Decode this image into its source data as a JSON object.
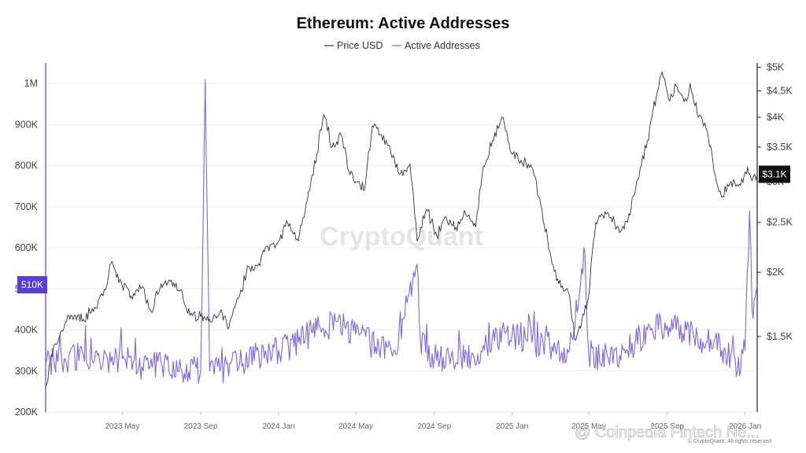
{
  "chart_data": {
    "type": "line",
    "title": "Ethereum: Active Addresses",
    "legend": {
      "placement": "top-center",
      "entries": [
        {
          "label": "Price USD",
          "color": "#333333"
        },
        {
          "label": "Active Addresses",
          "color": "#7b61ff"
        }
      ]
    },
    "x_axis": {
      "type": "date",
      "range": [
        "2023-01-01",
        "2026-01-20"
      ],
      "ticks": [
        {
          "date": "2023-05-01",
          "label": "2023 May"
        },
        {
          "date": "2023-09-01",
          "label": "2023 Sep"
        },
        {
          "date": "2024-01-01",
          "label": "2024 Jan"
        },
        {
          "date": "2024-05-01",
          "label": "2024 May"
        },
        {
          "date": "2024-09-01",
          "label": "2024 Sep"
        },
        {
          "date": "2025-01-01",
          "label": "2025 Jan"
        },
        {
          "date": "2025-05-01",
          "label": "2025 May"
        },
        {
          "date": "2025-09-01",
          "label": "2025 Sep"
        },
        {
          "date": "2026-01-01",
          "label": "2026 Jan"
        }
      ]
    },
    "y_left": {
      "title": "",
      "range": [
        200000,
        1050000
      ],
      "ticks": [
        {
          "value": 200000,
          "label": "200K"
        },
        {
          "value": 300000,
          "label": "300K"
        },
        {
          "value": 400000,
          "label": "400K"
        },
        {
          "value": 500000,
          "label": "500K"
        },
        {
          "value": 600000,
          "label": "600K"
        },
        {
          "value": 700000,
          "label": "700K"
        },
        {
          "value": 800000,
          "label": "800K"
        },
        {
          "value": 900000,
          "label": "900K"
        },
        {
          "value": 1000000,
          "label": "1M"
        }
      ]
    },
    "y_right": {
      "title": "",
      "scale": "log",
      "range": [
        1070,
        5100
      ],
      "ticks": [
        {
          "value": 1500,
          "label": "$1.5K"
        },
        {
          "value": 2000,
          "label": "$2K"
        },
        {
          "value": 2500,
          "label": "$2.5K"
        },
        {
          "value": 3000,
          "label": "$3K"
        },
        {
          "value": 3500,
          "label": "$3.5K"
        },
        {
          "value": 4000,
          "label": "$4K"
        },
        {
          "value": 4500,
          "label": "$4.5K"
        },
        {
          "value": 5000,
          "label": "$5K"
        }
      ]
    },
    "grid": true,
    "current_labels": {
      "active_addresses": "510K",
      "price": "$3.1K"
    },
    "series": [
      {
        "name": "Price USD",
        "axis": "right",
        "color": "#333333",
        "points": [
          [
            "2023-01-01",
            1200
          ],
          [
            "2023-01-15",
            1450
          ],
          [
            "2023-02-01",
            1600
          ],
          [
            "2023-02-15",
            1650
          ],
          [
            "2023-03-01",
            1620
          ],
          [
            "2023-03-15",
            1700
          ],
          [
            "2023-04-01",
            1800
          ],
          [
            "2023-04-15",
            2100
          ],
          [
            "2023-05-01",
            1880
          ],
          [
            "2023-05-15",
            1800
          ],
          [
            "2023-06-01",
            1870
          ],
          [
            "2023-06-15",
            1680
          ],
          [
            "2023-07-01",
            1900
          ],
          [
            "2023-07-15",
            1920
          ],
          [
            "2023-08-01",
            1850
          ],
          [
            "2023-08-15",
            1650
          ],
          [
            "2023-09-01",
            1640
          ],
          [
            "2023-09-15",
            1620
          ],
          [
            "2023-10-01",
            1670
          ],
          [
            "2023-10-15",
            1560
          ],
          [
            "2023-11-01",
            1800
          ],
          [
            "2023-11-15",
            2050
          ],
          [
            "2023-12-01",
            2080
          ],
          [
            "2023-12-15",
            2250
          ],
          [
            "2024-01-01",
            2300
          ],
          [
            "2024-01-15",
            2500
          ],
          [
            "2024-02-01",
            2300
          ],
          [
            "2024-02-15",
            2750
          ],
          [
            "2024-03-01",
            3400
          ],
          [
            "2024-03-12",
            4050
          ],
          [
            "2024-03-25",
            3500
          ],
          [
            "2024-04-08",
            3700
          ],
          [
            "2024-04-20",
            3150
          ],
          [
            "2024-05-01",
            3000
          ],
          [
            "2024-05-15",
            2900
          ],
          [
            "2024-05-27",
            3850
          ],
          [
            "2024-06-10",
            3700
          ],
          [
            "2024-06-25",
            3400
          ],
          [
            "2024-07-10",
            3100
          ],
          [
            "2024-07-25",
            3250
          ],
          [
            "2024-08-05",
            2300
          ],
          [
            "2024-08-20",
            2650
          ],
          [
            "2024-09-05",
            2350
          ],
          [
            "2024-09-20",
            2550
          ],
          [
            "2024-10-05",
            2450
          ],
          [
            "2024-10-20",
            2600
          ],
          [
            "2024-11-05",
            2450
          ],
          [
            "2024-11-15",
            3100
          ],
          [
            "2024-12-01",
            3600
          ],
          [
            "2024-12-16",
            4000
          ],
          [
            "2024-12-31",
            3400
          ],
          [
            "2025-01-15",
            3300
          ],
          [
            "2025-02-01",
            3200
          ],
          [
            "2025-02-15",
            2700
          ],
          [
            "2025-03-01",
            2200
          ],
          [
            "2025-03-15",
            1900
          ],
          [
            "2025-04-01",
            1800
          ],
          [
            "2025-04-09",
            1480
          ],
          [
            "2025-04-20",
            1600
          ],
          [
            "2025-05-01",
            1800
          ],
          [
            "2025-05-12",
            2500
          ],
          [
            "2025-06-01",
            2600
          ],
          [
            "2025-06-20",
            2400
          ],
          [
            "2025-07-01",
            2500
          ],
          [
            "2025-07-15",
            3000
          ],
          [
            "2025-08-01",
            3600
          ],
          [
            "2025-08-15",
            4400
          ],
          [
            "2025-08-24",
            4900
          ],
          [
            "2025-09-05",
            4300
          ],
          [
            "2025-09-15",
            4600
          ],
          [
            "2025-10-01",
            4300
          ],
          [
            "2025-10-07",
            4650
          ],
          [
            "2025-10-20",
            4000
          ],
          [
            "2025-11-01",
            3800
          ],
          [
            "2025-11-15",
            3100
          ],
          [
            "2025-11-25",
            2800
          ],
          [
            "2025-12-10",
            3000
          ],
          [
            "2025-12-25",
            2950
          ],
          [
            "2026-01-05",
            3200
          ],
          [
            "2026-01-10",
            3050
          ],
          [
            "2026-01-20",
            3100
          ]
        ]
      },
      {
        "name": "Active Addresses",
        "axis": "left",
        "color": "#7b61ff",
        "points": [
          [
            "2023-01-01",
            320000
          ],
          [
            "2023-02-01",
            330000
          ],
          [
            "2023-03-01",
            340000
          ],
          [
            "2023-04-01",
            320000
          ],
          [
            "2023-05-01",
            330000
          ],
          [
            "2023-06-01",
            310000
          ],
          [
            "2023-07-01",
            320000
          ],
          [
            "2023-08-01",
            305000
          ],
          [
            "2023-09-01",
            300000
          ],
          [
            "2023-09-08",
            1010000
          ],
          [
            "2023-09-15",
            300000
          ],
          [
            "2023-10-01",
            300000
          ],
          [
            "2023-11-01",
            320000
          ],
          [
            "2023-12-01",
            340000
          ],
          [
            "2024-01-01",
            350000
          ],
          [
            "2024-02-01",
            370000
          ],
          [
            "2024-03-01",
            400000
          ],
          [
            "2024-04-01",
            420000
          ],
          [
            "2024-05-01",
            390000
          ],
          [
            "2024-06-01",
            360000
          ],
          [
            "2024-07-01",
            350000
          ],
          [
            "2024-08-05",
            560000
          ],
          [
            "2024-08-10",
            380000
          ],
          [
            "2024-09-01",
            330000
          ],
          [
            "2024-10-01",
            320000
          ],
          [
            "2024-11-01",
            340000
          ],
          [
            "2024-12-01",
            380000
          ],
          [
            "2025-01-01",
            390000
          ],
          [
            "2025-02-01",
            370000
          ],
          [
            "2025-03-01",
            360000
          ],
          [
            "2025-04-01",
            350000
          ],
          [
            "2025-04-25",
            590000
          ],
          [
            "2025-05-01",
            340000
          ],
          [
            "2025-06-01",
            330000
          ],
          [
            "2025-07-01",
            350000
          ],
          [
            "2025-08-01",
            400000
          ],
          [
            "2025-09-01",
            410000
          ],
          [
            "2025-10-01",
            400000
          ],
          [
            "2025-11-01",
            370000
          ],
          [
            "2025-12-01",
            350000
          ],
          [
            "2025-12-20",
            300000
          ],
          [
            "2026-01-01",
            350000
          ],
          [
            "2026-01-08",
            690000
          ],
          [
            "2026-01-12",
            450000
          ],
          [
            "2026-01-20",
            510000
          ]
        ]
      }
    ]
  },
  "watermark": "CryptoQuant",
  "overlay_watermark": "@ Coinpedia Fintech Ne...",
  "copyright": "© CryptoQuant. All rights reserved"
}
